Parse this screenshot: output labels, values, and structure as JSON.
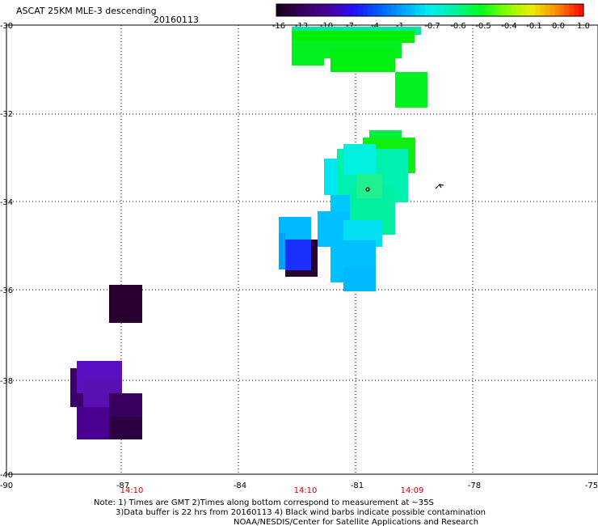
{
  "title": "ASCAT 25KM MLE-3 descending",
  "date": "20160113",
  "colorbar": {
    "labels": [
      "-16",
      "-13",
      "-10",
      "-7",
      "-4",
      "-1",
      "-0.7",
      "-0.6",
      "-0.5",
      "-0.4",
      "-0.1",
      "0.0",
      "1.0"
    ],
    "colors": [
      "#2a0030",
      "#3d006a",
      "#4a00b0",
      "#1a10ff",
      "#0070ff",
      "#00b8ff",
      "#00f0f0",
      "#00f090",
      "#20ff20",
      "#90ff00",
      "#f0f000",
      "#ff8000",
      "#ff2000"
    ]
  },
  "axes": {
    "y_labels": [
      "-30",
      "-32",
      "-34",
      "-36",
      "-38",
      "-40"
    ],
    "x_labels": [
      "-90",
      "-87",
      "-84",
      "-81",
      "-78",
      "-75"
    ]
  },
  "times": [
    "14:10",
    "14:10",
    "14:09"
  ],
  "notes": [
    "Note: 1) Times are GMT 2)Times along bottom correspond to measurement at ~35S",
    "3)Data buffer is 22 hrs from 20160113 4) Black wind barbs indicate possible contamination",
    "NOAA/NESDIS/Center for Satellite Applications and Research"
  ],
  "swath_cells": [
    {
      "color": "#00f000",
      "note": "green band at top"
    },
    {
      "color": "#00f8c0",
      "note": "cyan-green cluster"
    },
    {
      "color": "#00c0ff",
      "note": "light blue cluster"
    },
    {
      "color": "#1a30ff",
      "note": "blue cells"
    },
    {
      "color": "#2a0030",
      "note": "dark purple cells"
    },
    {
      "color": "#5a10c0",
      "note": "violet cells"
    }
  ]
}
